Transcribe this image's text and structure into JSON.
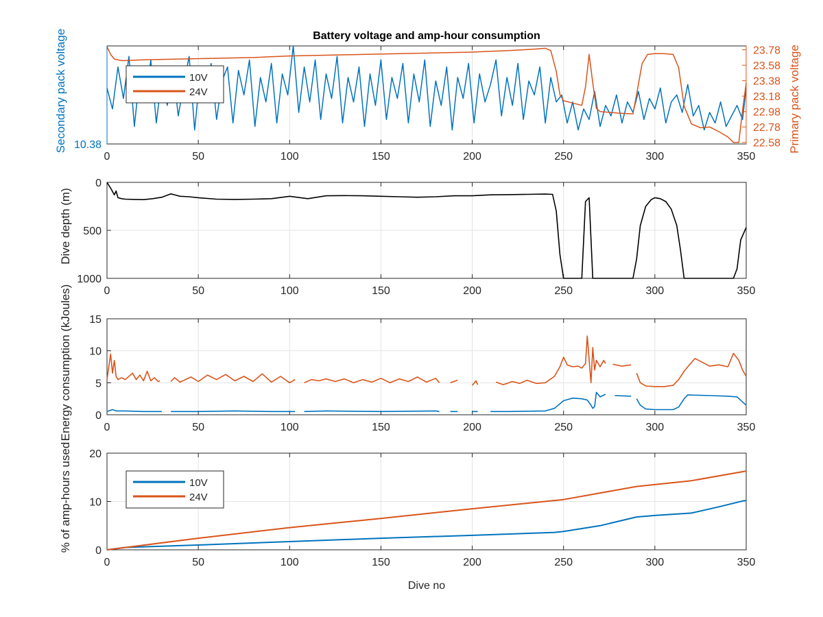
{
  "figure": {
    "title": "Battery voltage and amp-hour consumption",
    "colors": {
      "blue": "#0072BD",
      "orange": "#D95319",
      "black": "#000000",
      "grid": "#e3e3e3",
      "axis": "#262626"
    }
  },
  "chart_data": [
    {
      "type": "line",
      "title": "Battery voltage and amp-hour consumption",
      "xlabel": "",
      "xlim": [
        0,
        350
      ],
      "xticks": [
        0,
        50,
        100,
        150,
        200,
        250,
        300,
        350
      ],
      "ylabel_left": "Secondary pack voltage",
      "ylabel_right": "Primary pack voltage",
      "yticks_left": [
        "10.38"
      ],
      "yticks_right": [
        "23.78",
        "23.58",
        "23.38",
        "23.18",
        "22.98",
        "22.78",
        "22.58"
      ],
      "ylim_left": [
        10.38,
        10.66
      ],
      "ylim_right": [
        22.56,
        23.83
      ],
      "grid": true,
      "legend": {
        "location": "upper-left",
        "entries": [
          "10V",
          "24V"
        ]
      },
      "series": [
        {
          "name": "10V",
          "axis": "left",
          "color": "#0072BD",
          "x": [
            0,
            3,
            6,
            9,
            12,
            15,
            18,
            21,
            24,
            27,
            30,
            33,
            36,
            39,
            42,
            45,
            48,
            51,
            54,
            57,
            60,
            63,
            66,
            69,
            72,
            75,
            78,
            81,
            84,
            87,
            90,
            93,
            96,
            99,
            102,
            105,
            108,
            111,
            114,
            117,
            120,
            123,
            126,
            129,
            132,
            135,
            138,
            141,
            144,
            147,
            150,
            153,
            156,
            159,
            162,
            165,
            168,
            171,
            174,
            177,
            180,
            183,
            186,
            189,
            192,
            195,
            198,
            201,
            204,
            207,
            210,
            213,
            216,
            219,
            222,
            225,
            228,
            231,
            234,
            237,
            240,
            243,
            246,
            249,
            252,
            255,
            258,
            261,
            264,
            267,
            270,
            273,
            276,
            279,
            282,
            285,
            288,
            291,
            294,
            297,
            300,
            303,
            306,
            309,
            312,
            315,
            318,
            321,
            324,
            327,
            330,
            333,
            336,
            339,
            342,
            345,
            348,
            350
          ],
          "y": [
            10.54,
            10.48,
            10.6,
            10.51,
            10.63,
            10.43,
            10.58,
            10.5,
            10.62,
            10.44,
            10.57,
            10.49,
            10.6,
            10.46,
            10.55,
            10.63,
            10.42,
            10.58,
            10.5,
            10.61,
            10.45,
            10.56,
            10.6,
            10.44,
            10.59,
            10.52,
            10.62,
            10.43,
            10.57,
            10.5,
            10.61,
            10.44,
            10.58,
            10.52,
            10.66,
            10.47,
            10.6,
            10.5,
            10.62,
            10.45,
            10.58,
            10.51,
            10.63,
            10.44,
            10.57,
            10.5,
            10.6,
            10.43,
            10.58,
            10.49,
            10.62,
            10.45,
            10.57,
            10.51,
            10.61,
            10.44,
            10.58,
            10.5,
            10.62,
            10.43,
            10.56,
            10.49,
            10.6,
            10.42,
            10.57,
            10.51,
            10.61,
            10.44,
            10.58,
            10.5,
            10.55,
            10.62,
            10.46,
            10.57,
            10.49,
            10.61,
            10.45,
            10.56,
            10.52,
            10.6,
            10.44,
            10.57,
            10.5,
            10.52,
            10.44,
            10.5,
            10.42,
            10.48,
            10.45,
            10.53,
            10.43,
            10.49,
            10.46,
            10.52,
            10.44,
            10.5,
            10.47,
            10.53,
            10.45,
            10.51,
            10.48,
            10.54,
            10.44,
            10.5,
            10.52,
            10.47,
            10.55,
            10.46,
            10.49,
            10.42,
            10.47,
            10.44,
            10.5,
            10.43,
            10.46,
            10.49,
            10.45,
            10.54
          ]
        },
        {
          "name": "24V",
          "axis": "right",
          "color": "#D95319",
          "x": [
            0,
            2,
            4,
            6,
            8,
            10,
            20,
            40,
            60,
            80,
            100,
            120,
            140,
            160,
            180,
            200,
            220,
            235,
            240,
            243,
            246,
            248,
            250,
            255,
            260,
            262,
            264,
            266,
            268,
            270,
            280,
            288,
            290,
            293,
            296,
            300,
            305,
            310,
            313,
            316,
            320,
            325,
            330,
            335,
            340,
            343,
            346,
            348,
            350
          ],
          "y": [
            23.82,
            23.72,
            23.66,
            23.65,
            23.64,
            23.64,
            23.65,
            23.66,
            23.67,
            23.68,
            23.7,
            23.71,
            23.72,
            23.73,
            23.74,
            23.75,
            23.77,
            23.79,
            23.8,
            23.77,
            23.5,
            23.2,
            23.12,
            23.09,
            23.06,
            23.3,
            23.72,
            23.35,
            23.02,
            22.98,
            22.96,
            22.95,
            23.2,
            23.6,
            23.72,
            23.73,
            23.73,
            23.72,
            23.55,
            23.05,
            22.82,
            22.77,
            22.78,
            22.72,
            22.65,
            22.58,
            22.58,
            23.0,
            23.35
          ]
        }
      ]
    },
    {
      "type": "line",
      "xlabel": "",
      "ylabel": "Dive depth (m)",
      "xlim": [
        0,
        350
      ],
      "ylim": [
        0,
        1000
      ],
      "y_reversed": true,
      "xticks": [
        0,
        50,
        100,
        150,
        200,
        250,
        300,
        350
      ],
      "yticks": [
        0,
        500,
        1000
      ],
      "grid": true,
      "series": [
        {
          "color": "#000000",
          "x": [
            0,
            2,
            4,
            5,
            6,
            8,
            10,
            15,
            20,
            25,
            30,
            35,
            40,
            45,
            50,
            60,
            70,
            80,
            90,
            100,
            110,
            120,
            130,
            140,
            150,
            160,
            170,
            180,
            190,
            200,
            210,
            220,
            230,
            240,
            244,
            246,
            248,
            250,
            252,
            255,
            260,
            262,
            264,
            266,
            268,
            270,
            280,
            288,
            290,
            292,
            295,
            298,
            300,
            303,
            306,
            309,
            312,
            314,
            316,
            320,
            330,
            340,
            343,
            345,
            347,
            350
          ],
          "y": [
            0,
            60,
            130,
            90,
            160,
            170,
            175,
            178,
            180,
            170,
            155,
            120,
            145,
            150,
            160,
            175,
            178,
            175,
            170,
            145,
            170,
            140,
            138,
            140,
            145,
            150,
            155,
            150,
            140,
            140,
            130,
            128,
            125,
            122,
            125,
            300,
            750,
            1000,
            1000,
            1000,
            1000,
            200,
            160,
            1000,
            1000,
            1000,
            1000,
            1000,
            800,
            450,
            250,
            180,
            160,
            170,
            200,
            280,
            450,
            700,
            1000,
            1000,
            1000,
            1000,
            1000,
            900,
            600,
            470
          ]
        }
      ]
    },
    {
      "type": "line",
      "xlabel": "",
      "ylabel": "Energy consumption (kJoules)",
      "xlim": [
        0,
        350
      ],
      "ylim": [
        0,
        15
      ],
      "xticks": [
        0,
        50,
        100,
        150,
        200,
        250,
        300,
        350
      ],
      "yticks": [
        0,
        5,
        10,
        15
      ],
      "grid": true,
      "series": [
        {
          "color": "#D95319",
          "x": [
            0,
            2,
            3,
            4,
            5,
            6,
            8,
            10,
            14,
            16,
            18,
            20,
            22,
            24,
            26,
            28,
            29,
            null,
            35,
            37,
            40,
            43,
            46,
            50,
            55,
            60,
            65,
            70,
            75,
            80,
            85,
            90,
            95,
            100,
            103,
            null,
            108,
            112,
            116,
            120,
            125,
            130,
            135,
            140,
            145,
            150,
            155,
            160,
            165,
            170,
            175,
            180,
            182,
            null,
            188,
            192,
            null,
            200,
            202,
            203,
            null,
            213,
            217,
            222,
            226,
            230,
            235,
            240,
            245,
            248,
            250,
            252,
            255,
            258,
            260,
            262,
            263,
            265,
            266,
            267,
            268,
            270,
            272,
            273,
            null,
            277,
            282,
            287,
            null,
            290,
            292,
            295,
            300,
            305,
            310,
            313,
            316,
            318,
            322,
            330,
            335,
            340,
            343,
            346,
            348,
            350
          ],
          "y": [
            5.5,
            9.5,
            6.5,
            8.5,
            6,
            5.5,
            5.8,
            5.5,
            6.5,
            5.5,
            6.2,
            5.3,
            6.8,
            5.3,
            5.8,
            5.2,
            5.3,
            null,
            5.2,
            5.8,
            5.1,
            5.5,
            5.9,
            5.2,
            6.2,
            5.5,
            6.3,
            5.3,
            6,
            5.2,
            6.4,
            5.1,
            6,
            5.0,
            5.5,
            null,
            5.0,
            5.5,
            5.3,
            5.6,
            5.2,
            5.6,
            5.0,
            5.5,
            5.1,
            5.7,
            5.0,
            5.6,
            5.2,
            5.9,
            5.1,
            5.7,
            5.0,
            null,
            5.0,
            5.4,
            null,
            4.6,
            5.3,
            4.7,
            null,
            5.1,
            4.7,
            5.2,
            4.9,
            5.4,
            4.9,
            5.0,
            6.0,
            7.5,
            9.0,
            7.8,
            7.5,
            7.6,
            7.3,
            8.0,
            12.3,
            5.0,
            10.5,
            7.0,
            8.5,
            7.5,
            8.5,
            8.0,
            null,
            7.9,
            7.6,
            7.8,
            null,
            6.5,
            5.0,
            4.5,
            4.4,
            4.4,
            4.6,
            5.5,
            6.8,
            7.5,
            8.8,
            7.6,
            7.8,
            7.5,
            9.6,
            8.5,
            7.0,
            6.0
          ]
        },
        {
          "color": "#0072BD",
          "x": [
            0,
            3,
            5,
            10,
            20,
            30,
            null,
            35,
            50,
            70,
            90,
            103,
            null,
            108,
            120,
            150,
            180,
            182,
            null,
            188,
            192,
            null,
            200,
            203,
            null,
            210,
            220,
            240,
            245,
            250,
            255,
            260,
            263,
            265,
            266,
            267,
            268,
            270,
            273,
            null,
            278,
            287,
            null,
            290,
            292,
            295,
            300,
            310,
            313,
            316,
            318,
            330,
            340,
            345,
            348,
            350
          ],
          "y": [
            0.5,
            0.8,
            0.6,
            0.6,
            0.5,
            0.5,
            null,
            0.5,
            0.5,
            0.6,
            0.5,
            0.5,
            null,
            0.5,
            0.6,
            0.5,
            0.6,
            0.5,
            null,
            0.5,
            0.5,
            null,
            0.5,
            0.5,
            null,
            0.5,
            0.5,
            0.6,
            1.0,
            2.2,
            2.6,
            2.5,
            2.3,
            1.5,
            1.0,
            1.3,
            3.5,
            2.8,
            3.2,
            null,
            3.0,
            2.9,
            null,
            2.5,
            1.5,
            0.9,
            0.8,
            0.8,
            1.2,
            2.5,
            3.1,
            3.0,
            2.9,
            2.8,
            2.0,
            1.5
          ]
        }
      ]
    },
    {
      "type": "line",
      "xlabel": "Dive no",
      "ylabel": "% of amp-hours used",
      "xlim": [
        0,
        350
      ],
      "ylim": [
        0,
        20
      ],
      "xticks": [
        0,
        50,
        100,
        150,
        200,
        250,
        300,
        350
      ],
      "yticks": [
        0,
        10,
        20
      ],
      "grid": true,
      "legend": {
        "location": "upper-left",
        "entries": [
          "10V",
          "24V"
        ]
      },
      "series": [
        {
          "name": "10V",
          "color": "#0072BD",
          "x": [
            0,
            10,
            50,
            100,
            150,
            200,
            245,
            250,
            270,
            290,
            300,
            320,
            335,
            348,
            350
          ],
          "y": [
            0,
            0.5,
            1.0,
            1.7,
            2.4,
            3.0,
            3.6,
            3.8,
            5.0,
            6.8,
            7.1,
            7.6,
            8.9,
            10.1,
            10.2
          ],
          "line_width": 2
        },
        {
          "name": "24V",
          "color": "#D95319",
          "x": [
            0,
            50,
            100,
            150,
            200,
            250,
            290,
            320,
            350
          ],
          "y": [
            0,
            2.4,
            4.6,
            6.5,
            8.5,
            10.4,
            13.1,
            14.3,
            16.3
          ],
          "line_width": 2
        }
      ]
    }
  ]
}
